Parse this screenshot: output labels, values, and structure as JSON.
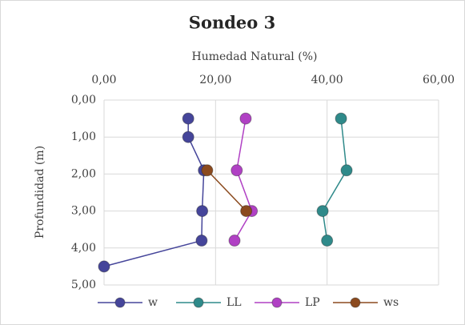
{
  "chart_data": {
    "type": "scatter",
    "title": "Sondeo 3",
    "xlabel": "Humedad Natural (%)",
    "ylabel": "Profundidad (m)",
    "xlim": [
      0,
      60
    ],
    "xticks": [
      {
        "value": 0,
        "label": "0,00"
      },
      {
        "value": 20,
        "label": "20,00"
      },
      {
        "value": 40,
        "label": "40,00"
      },
      {
        "value": 60,
        "label": "60,00"
      }
    ],
    "ylim": [
      0,
      5
    ],
    "yticks": [
      {
        "value": 0,
        "label": "0,00"
      },
      {
        "value": 1,
        "label": "1,00"
      },
      {
        "value": 2,
        "label": "2,00"
      },
      {
        "value": 3,
        "label": "3,00"
      },
      {
        "value": 4,
        "label": "4,00"
      },
      {
        "value": 5,
        "label": "5,00"
      }
    ],
    "y_inverted": true,
    "x_axis_position": "top",
    "grid": true,
    "legend": "bottom",
    "series": [
      {
        "name": "w",
        "color": "#45459a",
        "x": [
          15.1,
          15.1,
          17.9,
          17.6,
          17.5,
          0
        ],
        "y": [
          0.5,
          1.0,
          1.9,
          3.0,
          3.8,
          4.5
        ]
      },
      {
        "name": "LL",
        "color": "#2f8a8a",
        "x": [
          42.5,
          43.5,
          39.2,
          40.0
        ],
        "y": [
          0.5,
          1.9,
          3.0,
          3.8
        ]
      },
      {
        "name": "LP",
        "color": "#b040c4",
        "x": [
          25.4,
          23.8,
          26.5,
          23.4
        ],
        "y": [
          0.5,
          1.9,
          3.0,
          3.8
        ]
      },
      {
        "name": "ws",
        "color": "#8b4a1e",
        "x": [
          18.5,
          25.5
        ],
        "y": [
          1.9,
          3.0
        ]
      }
    ]
  }
}
